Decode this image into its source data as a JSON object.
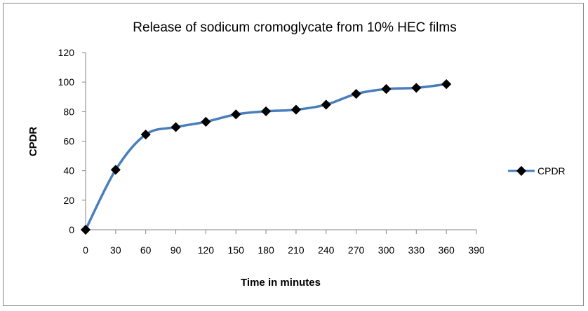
{
  "chart_data": {
    "type": "line",
    "title": "Release of sodicum cromoglycate from 10% HEC films",
    "xlabel": "Time in minutes",
    "ylabel": "CPDR",
    "xlim": [
      0,
      390
    ],
    "ylim": [
      0,
      120
    ],
    "xticks": [
      0,
      30,
      60,
      90,
      120,
      150,
      180,
      210,
      240,
      270,
      300,
      330,
      360,
      390
    ],
    "yticks": [
      0,
      20,
      40,
      60,
      80,
      100,
      120
    ],
    "grid": false,
    "legend": "right",
    "series": [
      {
        "name": "CPDR",
        "color": "#4a7ebb",
        "marker": "diamond",
        "x": [
          0,
          30,
          60,
          90,
          120,
          150,
          180,
          210,
          240,
          270,
          300,
          330,
          360
        ],
        "y": [
          0,
          40.6,
          64.5,
          69.5,
          73.1,
          78.1,
          80.2,
          81.3,
          84.7,
          92,
          95.3,
          96.1,
          98.6
        ]
      }
    ]
  }
}
